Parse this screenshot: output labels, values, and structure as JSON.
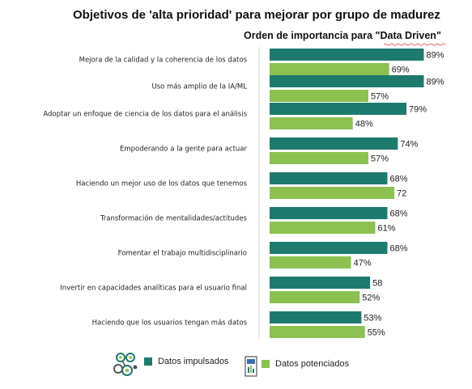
{
  "chart_data": {
    "type": "bar",
    "orientation": "horizontal",
    "title": "Objetivos de 'alta prioridad' para mejorar por grupo de madurez",
    "subtitle": "Orden de importancia para \"Data Driven\"",
    "categories": [
      "Mejora de la calidad y la coherencia de los datos",
      "Uso más amplio de la IA/ML",
      "Adoptar un enfoque de ciencia de los datos para el análisis",
      "Empoderando a la gente para actuar",
      "Haciendo un mejor uso de los datos que tenemos",
      "Transformación de mentalidades/actitudes",
      "Fomentar el trabajo multidisciplinario",
      "Invertir en capacidades analíticas para el usuario final",
      "Haciendo que los usuarios tengan más datos"
    ],
    "series": [
      {
        "name": "Datos impulsados",
        "color": "#1f7a6e",
        "values": [
          89,
          89,
          79,
          74,
          68,
          68,
          68,
          58,
          53
        ],
        "labels": [
          "89%",
          "89%",
          "79%",
          "74%",
          "68%",
          "68%",
          "68%",
          "58",
          "53%"
        ]
      },
      {
        "name": "Datos potenciados",
        "color": "#8cc152",
        "values": [
          69,
          57,
          48,
          57,
          72,
          61,
          47,
          52,
          55
        ],
        "labels": [
          "69%",
          "57%",
          "48%",
          "57%",
          "72",
          "61%",
          "47%",
          "52%",
          "55%"
        ]
      }
    ],
    "xlim": [
      0,
      100
    ],
    "grid": false,
    "legend_position": "bottom"
  },
  "legend": {
    "items": [
      {
        "label": "Datos impulsados",
        "color": "#1f7a6e",
        "icon": "network-nodes-icon"
      },
      {
        "label": "Datos potenciados",
        "color": "#8cc152",
        "icon": "document-chart-icon"
      }
    ]
  }
}
